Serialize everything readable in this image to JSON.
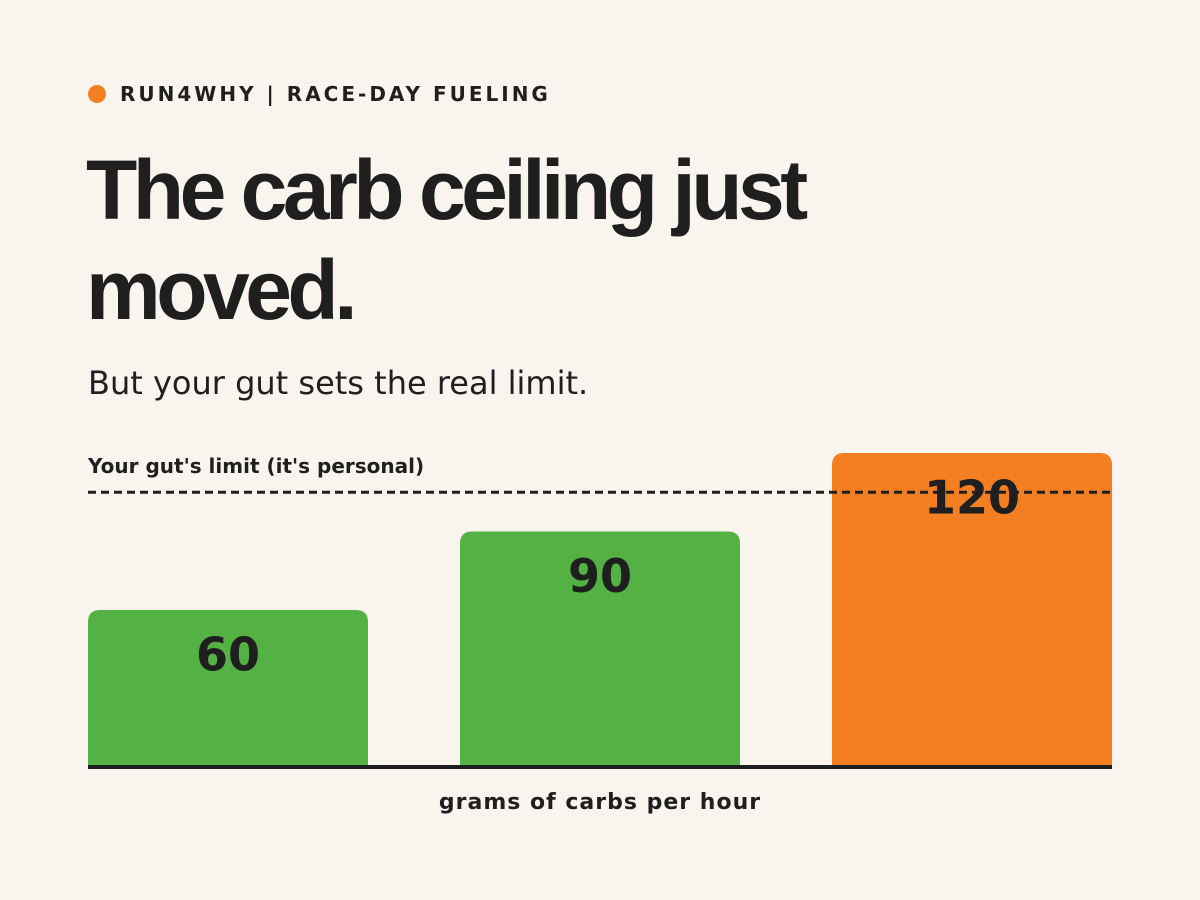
{
  "header": {
    "brand": "RUN4WHY | RACE-DAY FUELING",
    "title": "The carb ceiling just moved.",
    "subtitle": "But your gut sets the real limit."
  },
  "chart_data": {
    "type": "bar",
    "categories": [
      null,
      null,
      null
    ],
    "values": [
      60,
      90,
      120
    ],
    "colors": [
      "#54b244",
      "#54b244",
      "#f47f22"
    ],
    "ylim": [
      0,
      120
    ],
    "reference_line": {
      "value": 105,
      "label": "Your gut's limit (it's personal)"
    },
    "x_label": "grams of carbs per hour"
  }
}
